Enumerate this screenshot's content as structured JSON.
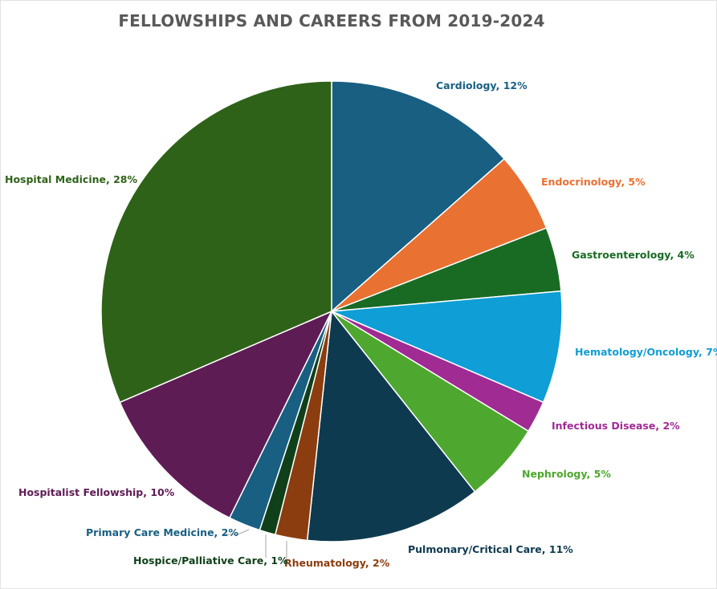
{
  "chart_data": {
    "type": "pie",
    "title": "FELLOWSHIPS AND CAREERS FROM 2019-2024",
    "slices": [
      {
        "category": "Cardiology",
        "value": 12,
        "label": "Cardiology, 12%",
        "color": "#185f82"
      },
      {
        "category": "Endocrinology",
        "value": 5,
        "label": "Endocrinology, 5%",
        "color": "#e97132"
      },
      {
        "category": "Gastroenterology",
        "value": 4,
        "label": "Gastroenterology, 4%",
        "color": "#196b24"
      },
      {
        "category": "Hematology/Oncology",
        "value": 7,
        "label": "Hematology/Oncology, 7%",
        "color": "#0f9ed5"
      },
      {
        "category": "Infectious Disease",
        "value": 2,
        "label": "Infectious Disease, 2%",
        "color": "#a02b93"
      },
      {
        "category": "Nephrology",
        "value": 5,
        "label": "Nephrology, 5%",
        "color": "#4ea72e"
      },
      {
        "category": "Pulmonary/Critical Care",
        "value": 11,
        "label": "Pulmonary/Critical Care, 11%",
        "color": "#0e3a4f"
      },
      {
        "category": "Rheumatology",
        "value": 2,
        "label": "Rheumatology, 2%",
        "color": "#8b3d0f"
      },
      {
        "category": "Hospice/Palliative Care",
        "value": 1,
        "label": "Hospice/Palliative Care, 1%",
        "color": "#10401a"
      },
      {
        "category": "Primary Care Medicine",
        "value": 2,
        "label": "Primary Care Medicine, 2%",
        "color": "#185f82"
      },
      {
        "category": "Hospitalist Fellowship",
        "value": 10,
        "label": "Hospitalist Fellowship, 10%",
        "color": "#5e1c55"
      },
      {
        "category": "Hospital Medicine",
        "value": 28,
        "label": "Hospital Medicine, 28%",
        "color": "#2f6219"
      }
    ],
    "legend": "none"
  }
}
